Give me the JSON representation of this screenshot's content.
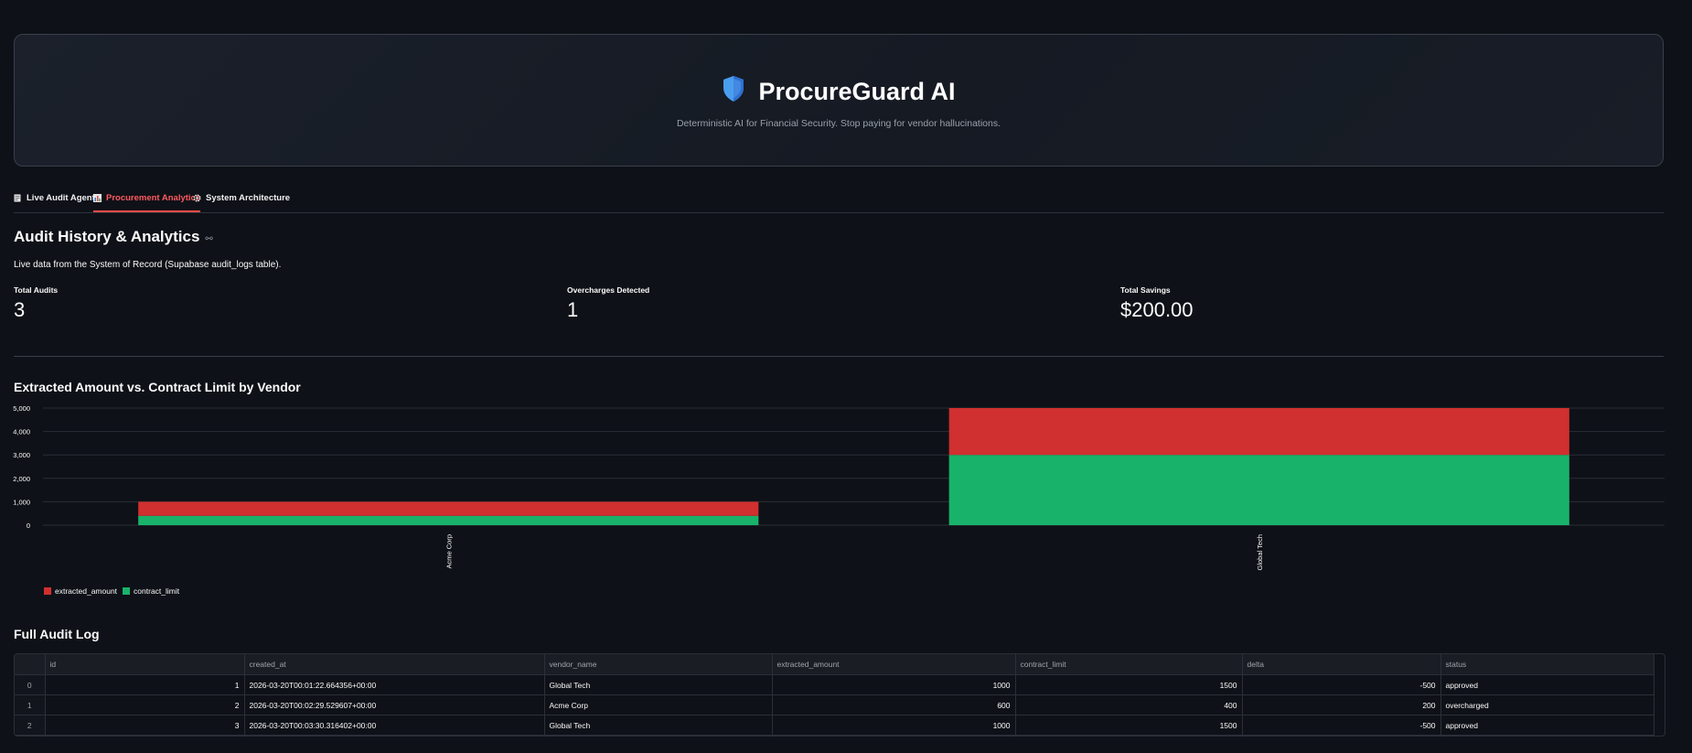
{
  "header": {
    "title": "ProcureGuard AI",
    "subtitle": "Deterministic AI for Financial Security. Stop paying for vendor hallucinations.",
    "icon": "shield-icon"
  },
  "tabs": [
    {
      "label": "Live Audit Agent",
      "icon": "receipt-icon",
      "active": false
    },
    {
      "label": "Procurement Analytics",
      "icon": "bar-chart-icon",
      "active": true
    },
    {
      "label": "System Architecture",
      "icon": "gear-icon",
      "active": false
    }
  ],
  "section": {
    "title": "Audit History & Analytics",
    "description": "Live data from the System of Record (Supabase audit_logs table)."
  },
  "metrics": [
    {
      "label": "Total Audits",
      "value": "3"
    },
    {
      "label": "Overcharges Detected",
      "value": "1"
    },
    {
      "label": "Total Savings",
      "value": "$200.00"
    }
  ],
  "chart_title": "Extracted Amount vs. Contract Limit by Vendor",
  "chart_data": {
    "type": "bar",
    "stacked": true,
    "categories": [
      "Acme Corp",
      "Global Tech"
    ],
    "series": [
      {
        "name": "contract_limit",
        "values": [
          400,
          3000
        ],
        "color": "#19b26b"
      },
      {
        "name": "extracted_amount",
        "values": [
          600,
          2000
        ],
        "color": "#d0302f"
      }
    ],
    "yticks": [
      0,
      1000,
      2000,
      3000,
      4000,
      5000
    ],
    "ytick_labels": [
      "0",
      "1,000",
      "2,000",
      "3,000",
      "4,000",
      "5,000"
    ],
    "ylim": [
      0,
      5000
    ],
    "grid": true,
    "legend_position": "bottom-left"
  },
  "legend": [
    {
      "label": "extracted_amount",
      "color": "#d0302f"
    },
    {
      "label": "contract_limit",
      "color": "#19b26b"
    }
  ],
  "table": {
    "title": "Full Audit Log",
    "columns": [
      "id",
      "created_at",
      "vendor_name",
      "extracted_amount",
      "contract_limit",
      "delta",
      "status"
    ],
    "rows": [
      {
        "index": "0",
        "id": "1",
        "created_at": "2026-03-20T00:01:22.664356+00:00",
        "vendor_name": "Global Tech",
        "extracted_amount": "1000",
        "contract_limit": "1500",
        "delta": "-500",
        "status": "approved"
      },
      {
        "index": "1",
        "id": "2",
        "created_at": "2026-03-20T00:02:29.529607+00:00",
        "vendor_name": "Acme Corp",
        "extracted_amount": "600",
        "contract_limit": "400",
        "delta": "200",
        "status": "overcharged"
      },
      {
        "index": "2",
        "id": "3",
        "created_at": "2026-03-20T00:03:30.316402+00:00",
        "vendor_name": "Global Tech",
        "extracted_amount": "1000",
        "contract_limit": "1500",
        "delta": "-500",
        "status": "approved"
      }
    ]
  }
}
